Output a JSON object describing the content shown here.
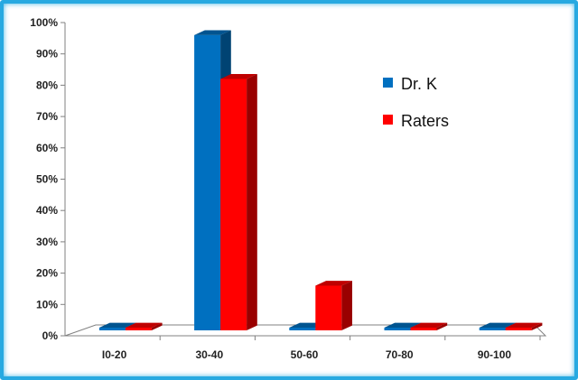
{
  "chart_data": {
    "type": "bar",
    "categories": [
      "I0-20",
      "30-40",
      "50-60",
      "70-80",
      "90-100"
    ],
    "series": [
      {
        "name": "Dr. K",
        "values": [
          0,
          96,
          0,
          0,
          0
        ],
        "color": "#0070c0"
      },
      {
        "name": "Raters",
        "values": [
          0,
          82,
          16,
          0,
          0
        ],
        "color": "#ff0000"
      }
    ],
    "ylim": [
      0,
      100
    ],
    "yticks": [
      "0%",
      "10%",
      "20%",
      "30%",
      "40%",
      "50%",
      "60%",
      "70%",
      "80%",
      "90%",
      "100%"
    ],
    "title": "",
    "xlabel": "",
    "ylabel": "",
    "legend_position": "right",
    "grid": false,
    "frame_color": "#27a9e1"
  }
}
